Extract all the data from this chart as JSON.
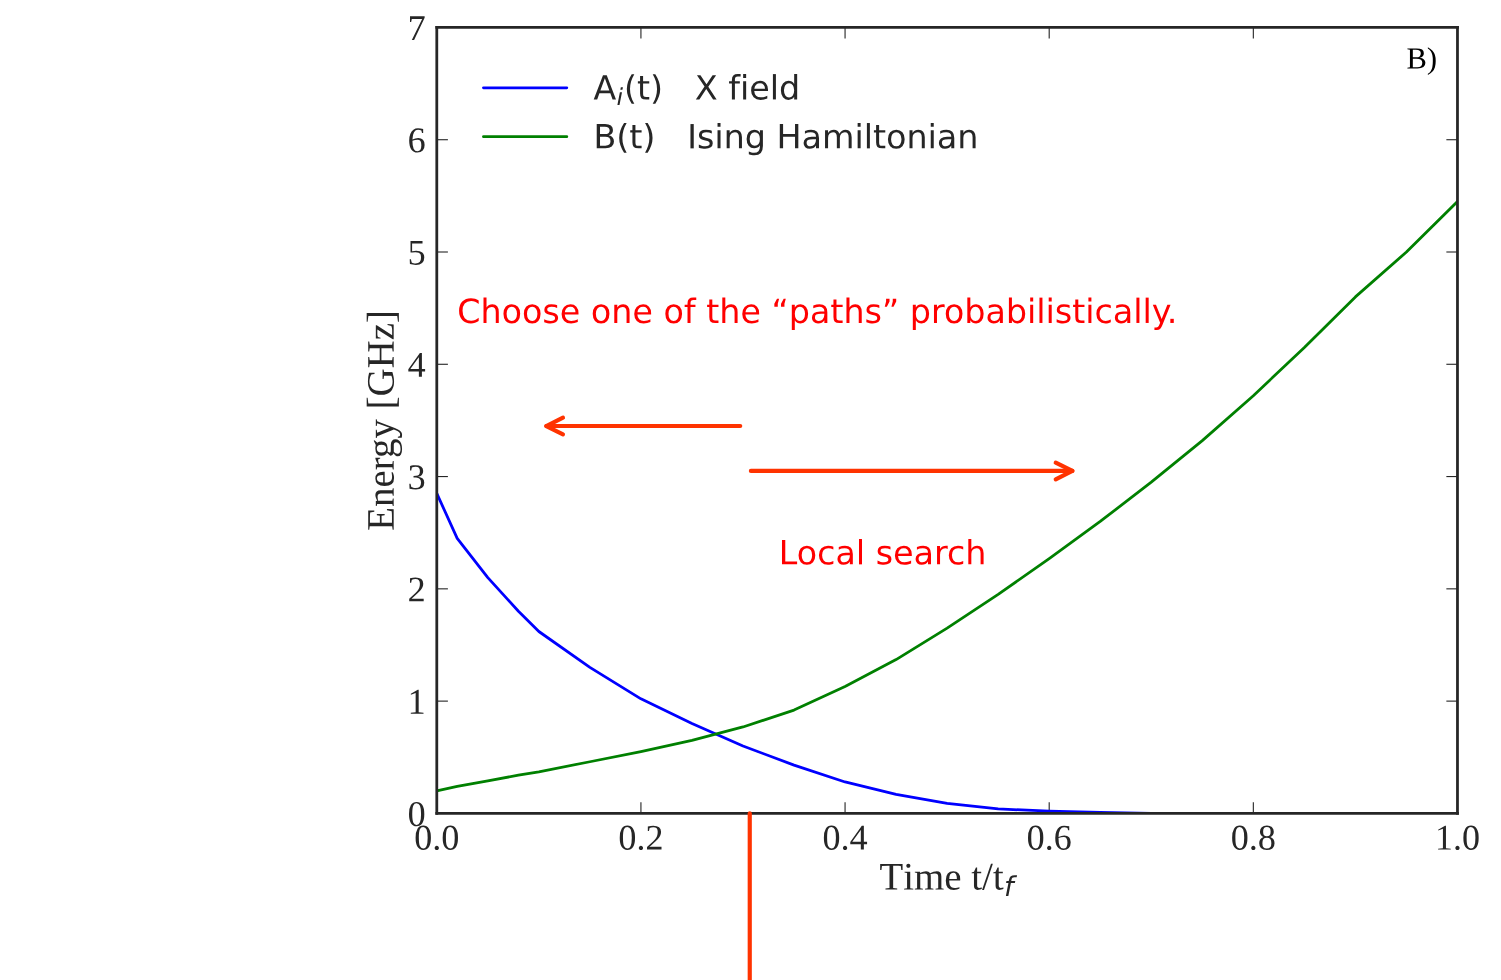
{
  "chart_data": {
    "type": "line",
    "xlabel": "Time t/t$_{f}$",
    "ylabel": "Energy [GHz]",
    "x": [
      0,
      0.02,
      0.05,
      0.08,
      0.1,
      0.15,
      0.2,
      0.25,
      0.3,
      0.35,
      0.4,
      0.45,
      0.5,
      0.55,
      0.6,
      0.65,
      0.7,
      0.75,
      0.8,
      0.85,
      0.9,
      0.95,
      1.0
    ],
    "series": [
      {
        "name": "A$_{i}$(t)   X field",
        "color": "#0000ff",
        "values": [
          2.85,
          2.45,
          2.1,
          1.8,
          1.62,
          1.3,
          1.02,
          0.8,
          0.6,
          0.43,
          0.28,
          0.17,
          0.09,
          0.04,
          0.02,
          0.01,
          0,
          null,
          null,
          null,
          null,
          null,
          null
        ]
      },
      {
        "name": "B(t)   Ising Hamiltonian",
        "color": "#008000",
        "values": [
          0.2,
          0.24,
          0.29,
          0.34,
          0.37,
          0.46,
          0.55,
          0.65,
          0.77,
          0.92,
          1.13,
          1.37,
          1.65,
          1.95,
          2.27,
          2.6,
          2.95,
          3.32,
          3.72,
          4.15,
          4.6,
          5.0,
          5.45
        ]
      }
    ],
    "xlim": [
      0,
      1
    ],
    "ylim": [
      0,
      7
    ],
    "xticks": [
      {
        "value": 0,
        "label": "0.0"
      },
      0.2,
      0.4,
      0.6,
      0.8,
      {
        "value": 1,
        "label": "1.0"
      }
    ],
    "yticks": [
      0,
      1,
      2,
      3,
      4,
      5,
      6,
      7
    ],
    "grid": false,
    "legend": "top left",
    "annotations": [
      "Choose one of the “paths” probabilistically.",
      "Local search",
      "B)"
    ]
  }
}
